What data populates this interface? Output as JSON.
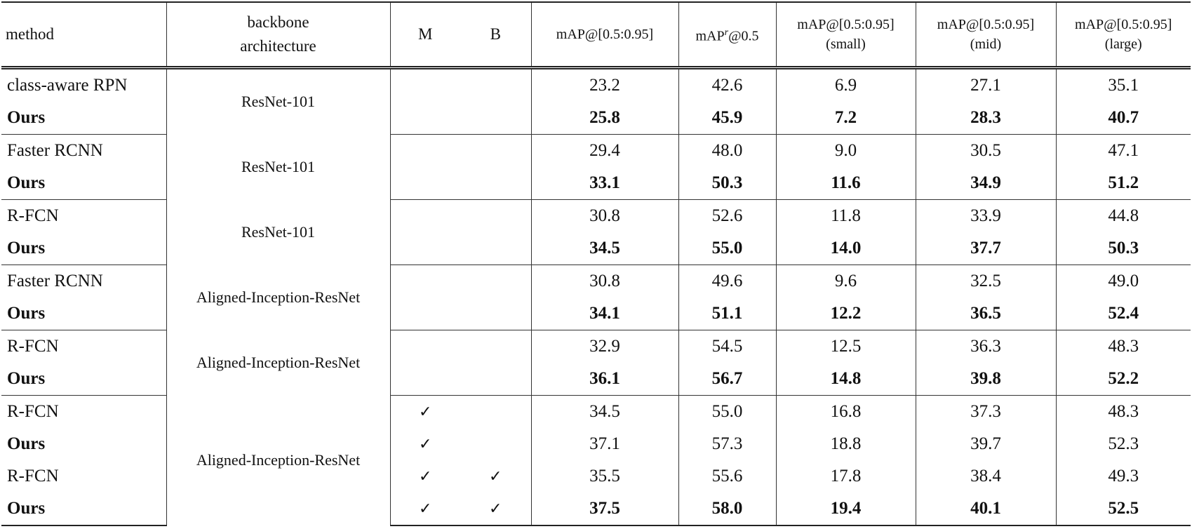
{
  "header": {
    "method": "method",
    "backbone_line1": "backbone",
    "backbone_line2": "architecture",
    "m": "M",
    "b": "B",
    "map": "mAP@[0.5:0.95]",
    "mapr_base": "mAP",
    "mapr_sup": "r",
    "mapr_tail": "@0.5",
    "map_small_1": "mAP@[0.5:0.95]",
    "map_small_2": "(small)",
    "map_mid_1": "mAP@[0.5:0.95]",
    "map_mid_2": "(mid)",
    "map_large_1": "mAP@[0.5:0.95]",
    "map_large_2": "(large)"
  },
  "check_symbol": "✓",
  "groups": [
    {
      "backbone": "ResNet-101",
      "rows": [
        {
          "method": "class-aware RPN",
          "bold_method": false,
          "bold_values": false,
          "M": false,
          "B": false,
          "values": [
            "23.2",
            "42.6",
            "6.9",
            "27.1",
            "35.1"
          ]
        },
        {
          "method": "Ours",
          "bold_method": true,
          "bold_values": true,
          "M": false,
          "B": false,
          "values": [
            "25.8",
            "45.9",
            "7.2",
            "28.3",
            "40.7"
          ]
        }
      ]
    },
    {
      "backbone": "ResNet-101",
      "rows": [
        {
          "method": "Faster RCNN",
          "bold_method": false,
          "bold_values": false,
          "M": false,
          "B": false,
          "values": [
            "29.4",
            "48.0",
            "9.0",
            "30.5",
            "47.1"
          ]
        },
        {
          "method": "Ours",
          "bold_method": true,
          "bold_values": true,
          "M": false,
          "B": false,
          "values": [
            "33.1",
            "50.3",
            "11.6",
            "34.9",
            "51.2"
          ]
        }
      ]
    },
    {
      "backbone": "ResNet-101",
      "rows": [
        {
          "method": "R-FCN",
          "bold_method": false,
          "bold_values": false,
          "M": false,
          "B": false,
          "values": [
            "30.8",
            "52.6",
            "11.8",
            "33.9",
            "44.8"
          ]
        },
        {
          "method": "Ours",
          "bold_method": true,
          "bold_values": true,
          "M": false,
          "B": false,
          "values": [
            "34.5",
            "55.0",
            "14.0",
            "37.7",
            "50.3"
          ]
        }
      ]
    },
    {
      "backbone": "Aligned-Inception-ResNet",
      "rows": [
        {
          "method": "Faster RCNN",
          "bold_method": false,
          "bold_values": false,
          "M": false,
          "B": false,
          "values": [
            "30.8",
            "49.6",
            "9.6",
            "32.5",
            "49.0"
          ]
        },
        {
          "method": "Ours",
          "bold_method": true,
          "bold_values": true,
          "M": false,
          "B": false,
          "values": [
            "34.1",
            "51.1",
            "12.2",
            "36.5",
            "52.4"
          ]
        }
      ]
    },
    {
      "backbone": "Aligned-Inception-ResNet",
      "rows": [
        {
          "method": "R-FCN",
          "bold_method": false,
          "bold_values": false,
          "M": false,
          "B": false,
          "values": [
            "32.9",
            "54.5",
            "12.5",
            "36.3",
            "48.3"
          ]
        },
        {
          "method": "Ours",
          "bold_method": true,
          "bold_values": true,
          "M": false,
          "B": false,
          "values": [
            "36.1",
            "56.7",
            "14.8",
            "39.8",
            "52.2"
          ]
        }
      ]
    },
    {
      "backbone": "Aligned-Inception-ResNet",
      "rows": [
        {
          "method": "R-FCN",
          "bold_method": false,
          "bold_values": false,
          "M": true,
          "B": false,
          "values": [
            "34.5",
            "55.0",
            "16.8",
            "37.3",
            "48.3"
          ]
        },
        {
          "method": "Ours",
          "bold_method": true,
          "bold_values": false,
          "M": true,
          "B": false,
          "values": [
            "37.1",
            "57.3",
            "18.8",
            "39.7",
            "52.3"
          ]
        },
        {
          "method": "R-FCN",
          "bold_method": false,
          "bold_values": false,
          "M": true,
          "B": true,
          "values": [
            "35.5",
            "55.6",
            "17.8",
            "38.4",
            "49.3"
          ]
        },
        {
          "method": "Ours",
          "bold_method": true,
          "bold_values": true,
          "M": true,
          "B": true,
          "values": [
            "37.5",
            "58.0",
            "19.4",
            "40.1",
            "52.5"
          ]
        }
      ]
    }
  ]
}
